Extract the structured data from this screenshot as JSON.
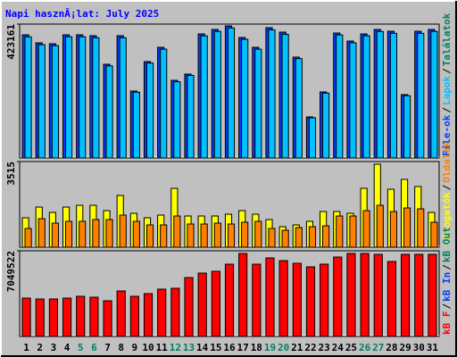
{
  "chart_data": [
    {
      "type": "bar",
      "title": "Napi hasznÃ¡lat: July 2025",
      "ylim": [
        0,
        423161
      ],
      "yticks": [
        423161
      ],
      "series": [
        {
          "name": "File-ok",
          "color": "#0040ff",
          "values": [
            389308,
            363918,
            361097,
            389308,
            389308,
            386487,
            296212,
            386487,
            211580,
            304676,
            349813,
            245433,
            265181,
            392129,
            406234,
            417518,
            380844,
            349813,
            411876,
            397771,
            318781,
            129769,
            208759,
            394950,
            369560,
            392129,
            406234,
            400592,
            200296,
            400592,
            406234
          ]
        },
        {
          "name": "Lapok",
          "color": "#00c0ff",
          "values": [
            383000,
            358000,
            355000,
            383000,
            383000,
            380000,
            291000,
            380000,
            208000,
            300000,
            344000,
            241000,
            261000,
            386000,
            400000,
            411000,
            375000,
            344000,
            405000,
            391000,
            314000,
            127000,
            205000,
            389000,
            364000,
            386000,
            400000,
            394000,
            197000,
            394000,
            400000
          ]
        }
      ],
      "legend_extra": [
        {
          "text": "Találatok",
          "color": "#00805c"
        }
      ],
      "separator": "/"
    },
    {
      "type": "bar",
      "ylim": [
        0,
        3515
      ],
      "yticks": [
        3515
      ],
      "series": [
        {
          "name": "Látogatók",
          "color": "#ffff00",
          "values": [
            1208,
            1647,
            1427,
            1647,
            1720,
            1720,
            1501,
            2123,
            1391,
            1208,
            1318,
            2416,
            1281,
            1281,
            1281,
            1354,
            1501,
            1354,
            1135,
            842,
            915,
            1061,
            1464,
            1464,
            1391,
            2416,
            3404,
            2379,
            2782,
            2489,
            1427
          ]
        },
        {
          "name": "Oldalak",
          "color": "#ff8000",
          "values": [
            769,
            1171,
            988,
            1061,
            1061,
            1135,
            1135,
            1318,
            1061,
            915,
            915,
            1281,
            952,
            952,
            988,
            952,
            1025,
            1061,
            769,
            695,
            805,
            842,
            878,
            1281,
            1281,
            1501,
            1720,
            1464,
            1610,
            1574,
            1025
          ]
        }
      ],
      "separator": "/"
    },
    {
      "type": "bar",
      "ylim": [
        0,
        7049522
      ],
      "yticks": [
        7049522
      ],
      "categories": [
        "1",
        "2",
        "3",
        "4",
        "5",
        "6",
        "7",
        "8",
        "9",
        "10",
        "11",
        "12",
        "13",
        "14",
        "15",
        "16",
        "17",
        "18",
        "19",
        "20",
        "21",
        "22",
        "23",
        "24",
        "25",
        "26",
        "27",
        "28",
        "29",
        "30",
        "31"
      ],
      "category_colors": [
        "#000000",
        "#000000",
        "#000000",
        "#000000",
        "#00805c",
        "#00805c",
        "#000000",
        "#000000",
        "#000000",
        "#000000",
        "#000000",
        "#00805c",
        "#00805c",
        "#000000",
        "#000000",
        "#000000",
        "#000000",
        "#000000",
        "#00805c",
        "#00805c",
        "#000000",
        "#000000",
        "#000000",
        "#000000",
        "#000000",
        "#00805c",
        "#00805c",
        "#000000",
        "#000000",
        "#000000",
        "#000000"
      ],
      "series": [
        {
          "name": "kB F",
          "color": "#ff0000",
          "values": [
            3157576,
            3084144,
            3084144,
            3157576,
            3304440,
            3231008,
            2937280,
            3745032,
            3304440,
            3524736,
            3891896,
            3965328,
            4846512,
            5213672,
            5360536,
            5948000,
            6829176,
            5948000,
            6462016,
            6241720,
            6021424,
            5727696,
            5948000,
            6535448,
            6829176,
            6829176,
            6755744,
            6168288,
            6755744,
            6755744,
            6755744
          ]
        }
      ],
      "legend_extra": [
        {
          "text": "kB In",
          "color": "#0040ff"
        },
        {
          "text": "kB Out",
          "color": "#00805c"
        }
      ],
      "separator": "/"
    }
  ]
}
